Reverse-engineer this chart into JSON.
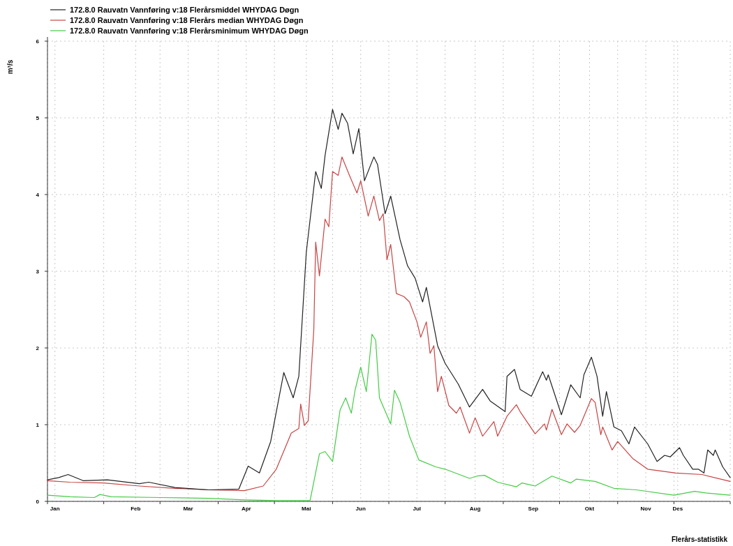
{
  "chart_data": {
    "type": "line",
    "ylabel": "m³/s",
    "annotations": [
      "Flerårs-statistikk"
    ],
    "xlim": [
      "--01-01",
      "--12-31"
    ],
    "ylim": [
      0,
      6
    ],
    "yticks": [
      0,
      1,
      2,
      3,
      4,
      5,
      6
    ],
    "xticks": [
      {
        "value": "--01-05",
        "label": "Jan"
      },
      {
        "value": "--02-17",
        "label": "Feb"
      },
      {
        "value": "--03-17",
        "label": "Mar"
      },
      {
        "value": "--04-17",
        "label": "Apr"
      },
      {
        "value": "--05-19",
        "label": "Mai"
      },
      {
        "value": "--06-17",
        "label": "Jun"
      },
      {
        "value": "--07-17",
        "label": "Jul"
      },
      {
        "value": "--08-17",
        "label": "Aug"
      },
      {
        "value": "--09-17",
        "label": "Sep"
      },
      {
        "value": "--10-17",
        "label": "Okt"
      },
      {
        "value": "--11-16",
        "label": "Nov"
      },
      {
        "value": "--12-03",
        "label": "Des"
      },
      {
        "value": "--01-01",
        "label": null
      },
      {
        "value": "--01-31",
        "label": null
      },
      {
        "value": "--03-02",
        "label": null
      },
      {
        "value": "--04-02",
        "label": null
      },
      {
        "value": "--05-02",
        "label": null
      },
      {
        "value": "--06-02",
        "label": null
      },
      {
        "value": "--07-02",
        "label": null
      },
      {
        "value": "--08-01",
        "label": null
      },
      {
        "value": "--09-01",
        "label": null
      },
      {
        "value": "--10-01",
        "label": null
      },
      {
        "value": "--11-01",
        "label": null
      },
      {
        "value": "--12-01",
        "label": null
      },
      {
        "value": "--12-31",
        "label": null
      }
    ],
    "grid": true,
    "legend": "top left",
    "line_style": "solid",
    "marker": "none",
    "series": [
      {
        "name": "172.8.0 Rauvatn Vannføring v:18 Flerårsmiddel WHYDAG Døgn",
        "color": "#222222",
        "x": [
          "--01-01",
          "--01-07",
          "--01-12",
          "--01-20",
          "--02-02",
          "--02-19",
          "--02-24",
          "--03-10",
          "--03-28",
          "--04-13",
          "--04-18",
          "--04-24",
          "--04-30",
          "--05-07",
          "--05-12",
          "--05-15",
          "--05-19",
          "--05-24",
          "--05-27",
          "--05-29",
          "--06-02",
          "--06-05",
          "--06-07",
          "--06-10",
          "--06-13",
          "--06-16",
          "--06-19",
          "--06-24",
          "--06-26",
          "--06-30",
          "--07-03",
          "--07-08",
          "--07-12",
          "--07-16",
          "--07-20",
          "--07-22",
          "--07-28",
          "--08-01",
          "--08-08",
          "--08-14",
          "--08-21",
          "--08-25",
          "--09-02",
          "--09-03",
          "--09-07",
          "--09-10",
          "--09-16",
          "--09-22",
          "--09-24",
          "--09-25",
          "--10-02",
          "--10-07",
          "--10-12",
          "--10-14",
          "--10-18",
          "--10-21",
          "--10-24",
          "--10-26",
          "--10-30",
          "--11-03",
          "--11-07",
          "--11-10",
          "--11-17",
          "--11-22",
          "--11-26",
          "--11-29",
          "--12-04",
          "--12-06",
          "--12-11",
          "--12-14",
          "--12-17",
          "--12-19",
          "--12-22",
          "--12-23",
          "--12-27",
          "--12-31"
        ],
        "values": [
          0.28,
          0.31,
          0.35,
          0.27,
          0.28,
          0.23,
          0.25,
          0.18,
          0.15,
          0.16,
          0.46,
          0.37,
          0.78,
          1.68,
          1.35,
          1.63,
          3.25,
          4.3,
          4.08,
          4.51,
          5.11,
          4.85,
          5.06,
          4.93,
          4.53,
          4.86,
          4.18,
          4.49,
          4.39,
          3.75,
          3.98,
          3.41,
          3.07,
          2.91,
          2.6,
          2.79,
          2.03,
          1.8,
          1.53,
          1.23,
          1.46,
          1.31,
          1.17,
          1.63,
          1.72,
          1.46,
          1.37,
          1.69,
          1.58,
          1.65,
          1.13,
          1.52,
          1.35,
          1.65,
          1.88,
          1.63,
          1.11,
          1.43,
          0.97,
          0.92,
          0.75,
          0.97,
          0.75,
          0.52,
          0.6,
          0.58,
          0.7,
          0.6,
          0.42,
          0.42,
          0.37,
          0.67,
          0.6,
          0.67,
          0.45,
          0.31
        ]
      },
      {
        "name": "172.8.0 Rauvatn Vannføring v:18 Flerårs median WHYDAG Døgn",
        "color": "#c84444",
        "x": [
          "--01-01",
          "--01-13",
          "--01-31",
          "--02-19",
          "--03-10",
          "--03-28",
          "--04-16",
          "--04-26",
          "--05-03",
          "--05-11",
          "--05-15",
          "--05-16",
          "--05-18",
          "--05-20",
          "--05-23",
          "--05-24",
          "--05-26",
          "--05-29",
          "--05-31",
          "--06-02",
          "--06-05",
          "--06-07",
          "--06-11",
          "--06-15",
          "--06-17",
          "--06-21",
          "--06-24",
          "--06-27",
          "--06-29",
          "--07-01",
          "--07-03",
          "--07-06",
          "--07-10",
          "--07-13",
          "--07-17",
          "--07-19",
          "--07-22",
          "--07-24",
          "--07-26",
          "--07-28",
          "--07-30",
          "--08-03",
          "--08-07",
          "--08-09",
          "--08-14",
          "--08-17",
          "--08-21",
          "--08-27",
          "--08-29",
          "--09-03",
          "--09-08",
          "--09-10",
          "--09-18",
          "--09-23",
          "--09-24",
          "--09-27",
          "--10-02",
          "--10-05",
          "--10-09",
          "--10-12",
          "--10-18",
          "--10-20",
          "--10-23",
          "--10-24",
          "--10-29",
          "--11-01",
          "--11-09",
          "--11-17",
          "--12-02",
          "--12-16",
          "--12-31"
        ],
        "values": [
          0.27,
          0.25,
          0.24,
          0.2,
          0.17,
          0.15,
          0.14,
          0.2,
          0.42,
          0.89,
          0.95,
          1.27,
          0.99,
          1.05,
          2.24,
          3.38,
          2.94,
          3.68,
          3.58,
          4.3,
          4.25,
          4.49,
          4.25,
          4.02,
          4.18,
          3.72,
          3.98,
          3.66,
          3.75,
          3.15,
          3.35,
          2.71,
          2.67,
          2.6,
          2.34,
          2.14,
          2.34,
          1.93,
          2.03,
          1.43,
          1.63,
          1.25,
          1.15,
          1.23,
          0.89,
          1.09,
          0.85,
          1.04,
          0.85,
          1.11,
          1.26,
          1.17,
          0.88,
          1.01,
          0.93,
          1.2,
          0.87,
          1.01,
          0.9,
          0.99,
          1.34,
          1.29,
          0.87,
          0.97,
          0.67,
          0.78,
          0.56,
          0.42,
          0.37,
          0.35,
          0.26
        ]
      },
      {
        "name": "172.8.0 Rauvatn Vannføring v:18 Flerårsminimum WHYDAG Døgn",
        "color": "#44cc44",
        "x": [
          "--01-01",
          "--01-13",
          "--01-26",
          "--01-29",
          "--02-04",
          "--03-02",
          "--03-28",
          "--04-16",
          "--05-04",
          "--05-21",
          "--05-26",
          "--05-29",
          "--06-02",
          "--06-06",
          "--06-09",
          "--06-12",
          "--06-14",
          "--06-17",
          "--06-20",
          "--06-23",
          "--06-25",
          "--06-27",
          "--07-03",
          "--07-05",
          "--07-08",
          "--07-13",
          "--07-18",
          "--07-27",
          "--08-01",
          "--08-14",
          "--08-18",
          "--08-22",
          "--08-29",
          "--09-08",
          "--09-11",
          "--09-18",
          "--09-27",
          "--10-07",
          "--10-10",
          "--10-20",
          "--10-30",
          "--11-11",
          "--12-01",
          "--12-12",
          "--12-18",
          "--12-31"
        ],
        "values": [
          0.08,
          0.06,
          0.05,
          0.09,
          0.06,
          0.05,
          0.04,
          0.02,
          0.01,
          0.01,
          0.62,
          0.65,
          0.52,
          1.19,
          1.35,
          1.15,
          1.45,
          1.75,
          1.43,
          2.18,
          2.1,
          1.35,
          1.01,
          1.45,
          1.29,
          0.85,
          0.54,
          0.45,
          0.42,
          0.3,
          0.33,
          0.34,
          0.25,
          0.19,
          0.24,
          0.2,
          0.33,
          0.24,
          0.29,
          0.26,
          0.17,
          0.15,
          0.08,
          0.13,
          0.11,
          0.08
        ]
      }
    ]
  }
}
